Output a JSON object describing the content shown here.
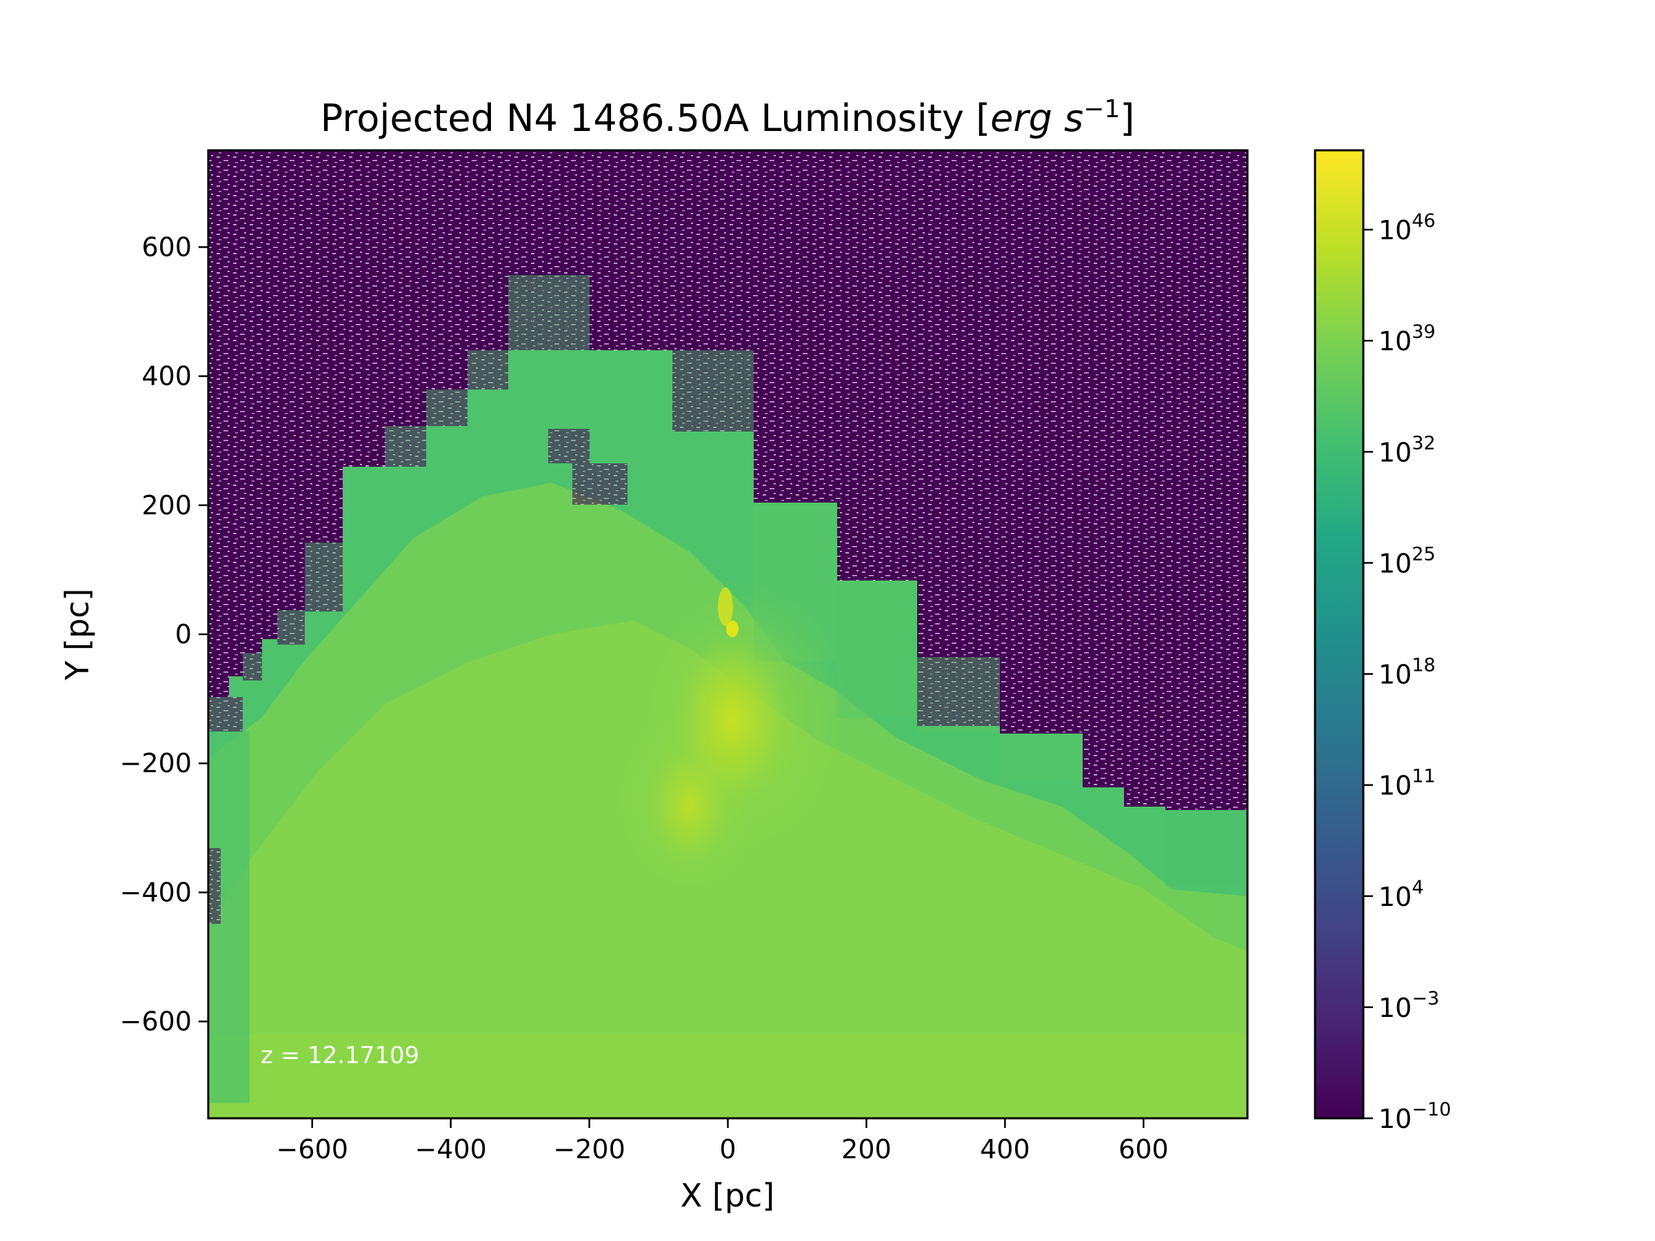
{
  "chart_data": {
    "type": "heatmap",
    "title": "Projected N4 1486.50A Luminosity [erg s⁻¹]",
    "xlabel": "X [pc]",
    "ylabel": "Y [pc]",
    "xlim": [
      -750,
      750
    ],
    "ylim": [
      -750,
      750
    ],
    "x_ticks": [
      -600,
      -400,
      -200,
      0,
      200,
      400,
      600
    ],
    "x_tick_labels": [
      "−600",
      "−400",
      "−200",
      "0",
      "200",
      "400",
      "600"
    ],
    "y_ticks": [
      600,
      400,
      200,
      0,
      -200,
      -400,
      -600
    ],
    "y_tick_labels": [
      "600",
      "400",
      "200",
      "0",
      "−200",
      "−400",
      "−600"
    ],
    "annotation": "z = 12.17109",
    "colormap": "viridis",
    "colorbar": {
      "scale": "log",
      "range_exponent": [
        -10,
        51
      ],
      "tick_exponents": [
        46,
        39,
        32,
        25,
        18,
        11,
        4,
        -3,
        -10
      ],
      "tick_labels": [
        "10",
        "10",
        "10",
        "10",
        "10",
        "10",
        "10",
        "10",
        "10"
      ],
      "tick_label_exponents": [
        "46",
        "39",
        "32",
        "25",
        "18",
        "11",
        "4",
        "−3",
        "−10"
      ]
    },
    "colors": {
      "background_low": "#440154",
      "emission_mid": "#4dc36b",
      "emission_high": "#8fd744",
      "emission_peak": "#d2e21b"
    }
  }
}
